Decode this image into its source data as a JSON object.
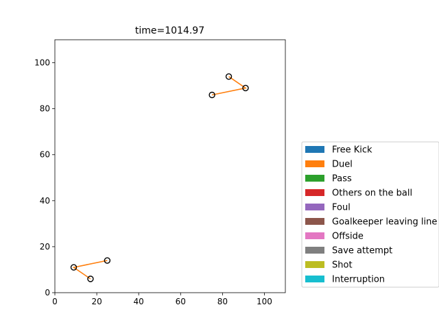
{
  "chart_data": {
    "type": "scatter",
    "title": "time=1014.97",
    "xlabel": "",
    "ylabel": "",
    "xlim": [
      0,
      110
    ],
    "ylim": [
      0,
      110
    ],
    "x_ticks": [
      0,
      20,
      40,
      60,
      80,
      100
    ],
    "y_ticks": [
      0,
      20,
      40,
      60,
      80,
      100
    ],
    "grid": false,
    "legend_position": "right, outside plot area",
    "line_color": "#ff7f0e",
    "groups": [
      {
        "points": [
          {
            "x": 83,
            "y": 94
          },
          {
            "x": 91,
            "y": 89
          },
          {
            "x": 75,
            "y": 86
          }
        ],
        "path": [
          [
            83,
            94
          ],
          [
            91,
            89
          ],
          [
            75,
            86
          ]
        ]
      },
      {
        "points": [
          {
            "x": 9,
            "y": 11
          },
          {
            "x": 25,
            "y": 14
          },
          {
            "x": 17,
            "y": 6
          }
        ],
        "path": [
          [
            25,
            14
          ],
          [
            9,
            11
          ],
          [
            17,
            6
          ]
        ]
      }
    ],
    "legend": [
      {
        "label": "Free Kick",
        "color": "#1f77b4"
      },
      {
        "label": "Duel",
        "color": "#ff7f0e"
      },
      {
        "label": "Pass",
        "color": "#2ca02c"
      },
      {
        "label": "Others on the ball",
        "color": "#d62728"
      },
      {
        "label": "Foul",
        "color": "#9467bd"
      },
      {
        "label": "Goalkeeper leaving line",
        "color": "#8c564b"
      },
      {
        "label": "Offside",
        "color": "#e377c2"
      },
      {
        "label": "Save attempt",
        "color": "#7f7f7f"
      },
      {
        "label": "Shot",
        "color": "#bcbd22"
      },
      {
        "label": "Interruption",
        "color": "#17becf"
      }
    ]
  }
}
